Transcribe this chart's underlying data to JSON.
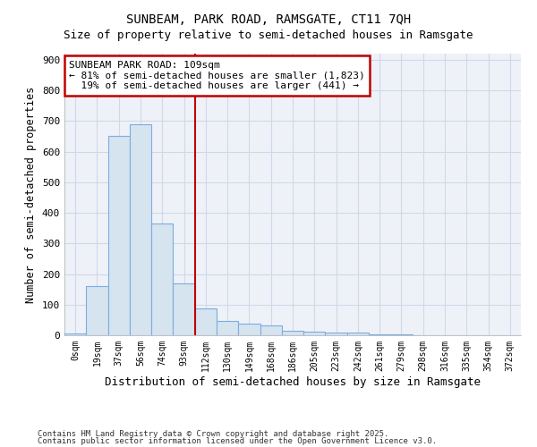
{
  "title": "SUNBEAM, PARK ROAD, RAMSGATE, CT11 7QH",
  "subtitle": "Size of property relative to semi-detached houses in Ramsgate",
  "xlabel": "Distribution of semi-detached houses by size in Ramsgate",
  "ylabel": "Number of semi-detached properties",
  "categories": [
    "0sqm",
    "19sqm",
    "37sqm",
    "56sqm",
    "74sqm",
    "93sqm",
    "112sqm",
    "130sqm",
    "149sqm",
    "168sqm",
    "186sqm",
    "205sqm",
    "223sqm",
    "242sqm",
    "261sqm",
    "279sqm",
    "298sqm",
    "316sqm",
    "335sqm",
    "354sqm",
    "372sqm"
  ],
  "values": [
    6,
    160,
    650,
    690,
    365,
    170,
    88,
    47,
    39,
    31,
    15,
    12,
    10,
    8,
    4,
    2,
    0,
    0,
    0,
    0,
    0
  ],
  "bar_color": "#d6e4f0",
  "bar_edge_color": "#7aade0",
  "annotation_text_line1": "SUNBEAM PARK ROAD: 109sqm",
  "annotation_text_line2": "← 81% of semi-detached houses are smaller (1,823)",
  "annotation_text_line3": "  19% of semi-detached houses are larger (441) →",
  "grid_color": "#d0d8e8",
  "plot_bg_color": "#eef2f8",
  "fig_bg_color": "#ffffff",
  "ann_box_bg": "#ffffff",
  "footnote1": "Contains HM Land Registry data © Crown copyright and database right 2025.",
  "footnote2": "Contains public sector information licensed under the Open Government Licence v3.0.",
  "ylim": [
    0,
    920
  ],
  "yticks": [
    0,
    100,
    200,
    300,
    400,
    500,
    600,
    700,
    800,
    900
  ],
  "red_line_x": 6.0
}
